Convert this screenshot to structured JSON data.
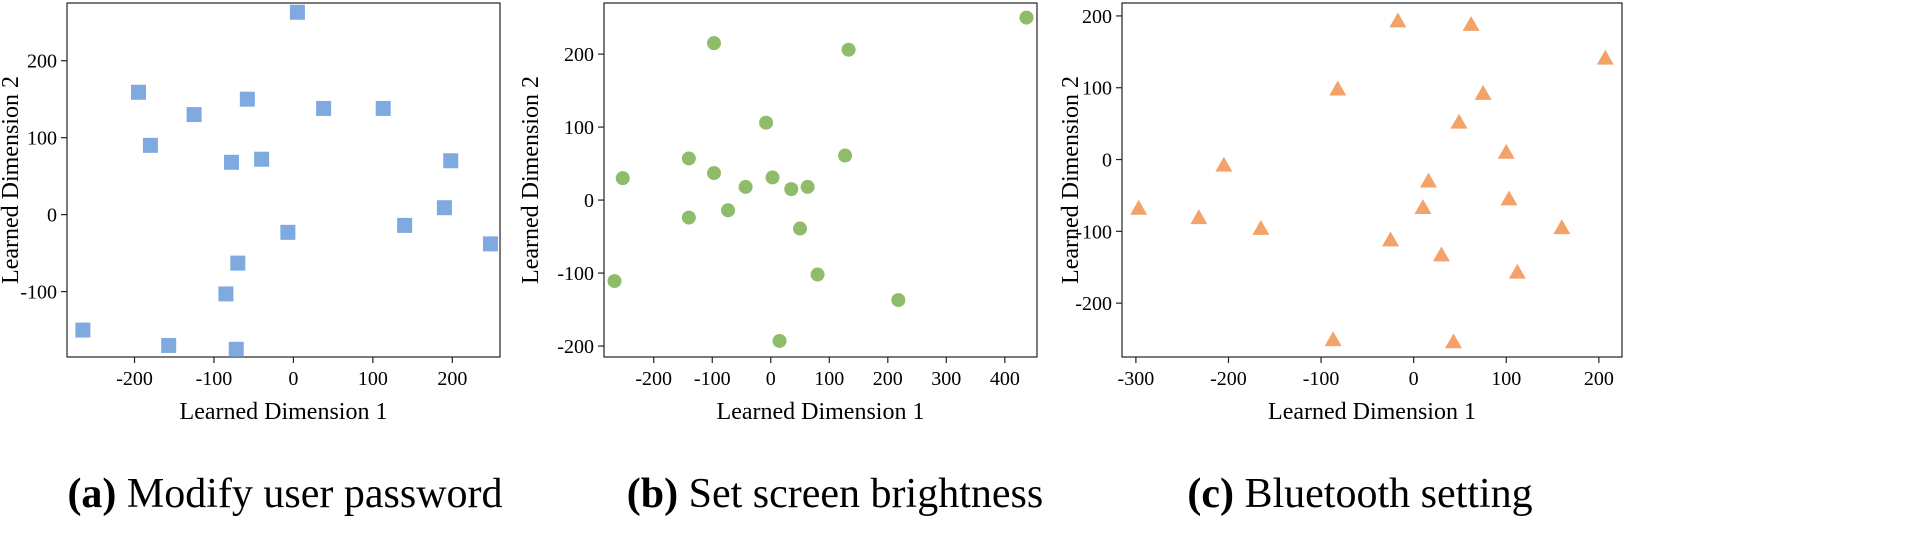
{
  "chart_data": [
    {
      "type": "scatter",
      "caption_tag": "(a)",
      "caption_text": "Modify user password",
      "xlabel": "Learned Dimension 1",
      "ylabel": "Learned Dimension 2",
      "xlim": [
        -285,
        260
      ],
      "ylim": [
        -185,
        275
      ],
      "xticks": [
        -200,
        -100,
        0,
        100,
        200
      ],
      "yticks": [
        -100,
        0,
        100,
        200
      ],
      "marker": "square",
      "color": "#7eaadf",
      "x": [
        5,
        -195,
        -180,
        -125,
        -58,
        -78,
        -40,
        38,
        113,
        198,
        -7,
        -70,
        -85,
        -72,
        -157,
        -265,
        140,
        190,
        248
      ],
      "y": [
        263,
        159,
        90,
        130,
        150,
        68,
        72,
        138,
        138,
        70,
        -23,
        -63,
        -103,
        -175,
        -170,
        -150,
        -14,
        9,
        -38
      ]
    },
    {
      "type": "scatter",
      "caption_tag": "(b)",
      "caption_text": "Set screen brightness",
      "xlabel": "Learned Dimension 1",
      "ylabel": "Learned Dimension 2",
      "xlim": [
        -285,
        455
      ],
      "ylim": [
        -215,
        270
      ],
      "xticks": [
        -200,
        -100,
        0,
        100,
        200,
        300,
        400
      ],
      "yticks": [
        -200,
        -100,
        0,
        100,
        200
      ],
      "marker": "circle",
      "color": "#8fbc6a",
      "x": [
        -97,
        133,
        437,
        -8,
        -140,
        -97,
        -253,
        -140,
        -73,
        -43,
        3,
        35,
        63,
        127,
        50,
        80,
        218,
        15,
        -267
      ],
      "y": [
        215,
        206,
        250,
        106,
        57,
        37,
        30,
        -24,
        -14,
        18,
        31,
        15,
        18,
        61,
        -39,
        -102,
        -137,
        -193,
        -111
      ]
    },
    {
      "type": "scatter",
      "caption_tag": "(c)",
      "caption_text": "Bluetooth setting",
      "xlabel": "Learned Dimension 1",
      "ylabel": "Learned Dimension 2",
      "xlim": [
        -315,
        225
      ],
      "ylim": [
        -275,
        218
      ],
      "xticks": [
        -300,
        -200,
        -100,
        0,
        100,
        200
      ],
      "yticks": [
        -200,
        -100,
        0,
        100,
        200
      ],
      "marker": "triangle",
      "color": "#f3a26a",
      "x": [
        -17,
        62,
        207,
        -82,
        75,
        49,
        100,
        -205,
        -297,
        -232,
        -165,
        16,
        10,
        -25,
        30,
        103,
        160,
        112,
        -87,
        43
      ],
      "y": [
        193,
        188,
        141,
        98,
        92,
        52,
        10,
        -8,
        -68,
        -81,
        -96,
        -30,
        -67,
        -112,
        -133,
        -55,
        -95,
        -157,
        -251,
        -254
      ]
    }
  ]
}
